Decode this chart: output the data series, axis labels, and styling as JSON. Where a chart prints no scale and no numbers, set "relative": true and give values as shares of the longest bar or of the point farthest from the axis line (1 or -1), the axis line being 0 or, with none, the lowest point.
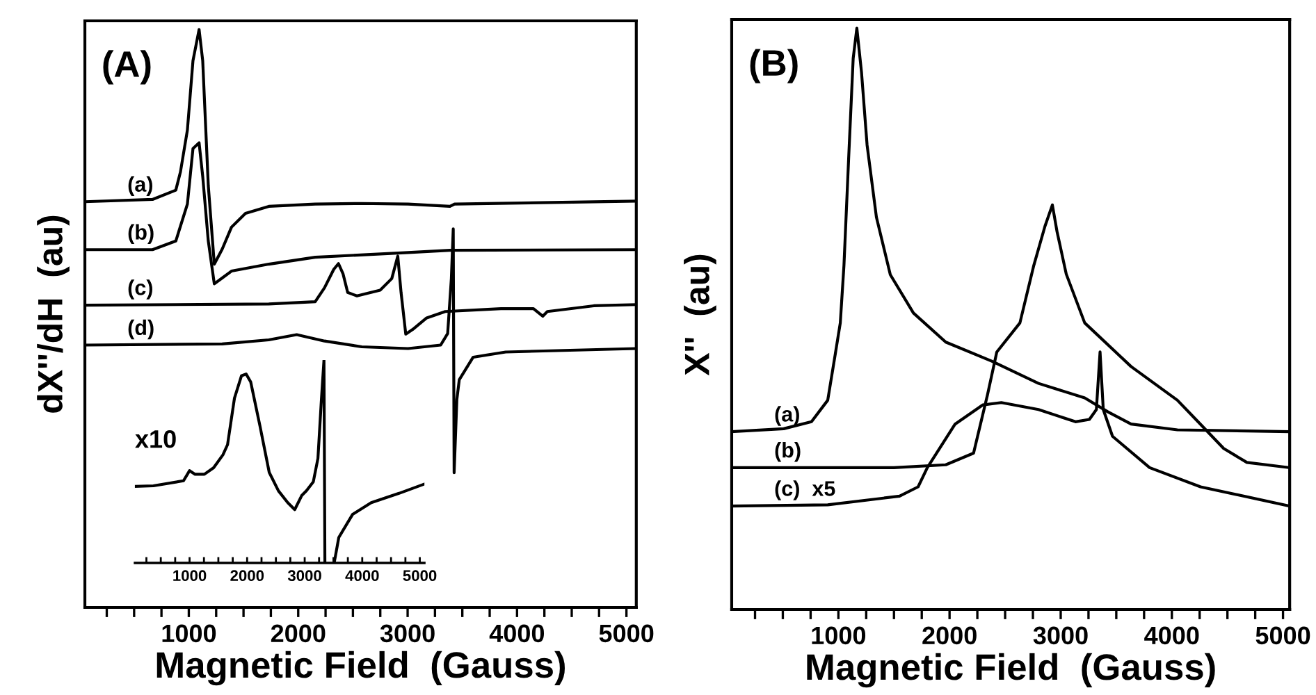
{
  "chart_data": [
    {
      "type": "line",
      "title": "(A)",
      "xlabel": "Magnetic Field  (Gauss)",
      "ylabel": "dX''/dH  (au)",
      "relative": true,
      "legend": false,
      "grid": false,
      "marker": "none",
      "line_style": "solid",
      "xlim": [
        50,
        5090
      ],
      "xticks": [
        {
          "value": 250,
          "label": null
        },
        {
          "value": 500,
          "label": null
        },
        {
          "value": 750,
          "label": null
        },
        1000,
        {
          "value": 1250,
          "label": null
        },
        {
          "value": 1500,
          "label": null
        },
        {
          "value": 1750,
          "label": null
        },
        2000,
        {
          "value": 2250,
          "label": null
        },
        {
          "value": 2500,
          "label": null
        },
        {
          "value": 2750,
          "label": null
        },
        3000,
        {
          "value": 3250,
          "label": null
        },
        {
          "value": 3500,
          "label": null
        },
        {
          "value": 3750,
          "label": null
        },
        4000,
        {
          "value": 4250,
          "label": null
        },
        {
          "value": 4500,
          "label": null
        },
        {
          "value": 4750,
          "label": null
        },
        5000
      ],
      "series": [
        {
          "name": "(a)",
          "color": "#000000",
          "x": [
            50,
            668,
            881,
            924,
            987,
            1038,
            1094,
            1127,
            1178,
            1233,
            1305,
            1390,
            1518,
            1731,
            2155,
            2580,
            3004,
            3387,
            3429,
            5090
          ],
          "values": [
            0.702,
            0.706,
            0.722,
            0.754,
            0.826,
            0.946,
            1.0,
            0.946,
            0.73,
            0.594,
            0.62,
            0.658,
            0.682,
            0.694,
            0.698,
            0.699,
            0.698,
            0.694,
            0.698,
            0.703
          ]
        },
        {
          "name": "(b)",
          "color": "#000000",
          "x": [
            50,
            668,
            881,
            987,
            1038,
            1094,
            1127,
            1178,
            1233,
            1305,
            1390,
            1731,
            2155,
            3004,
            3387,
            5090
          ],
          "values": [
            0.619,
            0.619,
            0.634,
            0.698,
            0.794,
            0.804,
            0.746,
            0.634,
            0.56,
            0.57,
            0.582,
            0.594,
            0.606,
            0.614,
            0.618,
            0.619
          ]
        },
        {
          "name": "(c)",
          "color": "#000000",
          "x": [
            50,
            1731,
            2155,
            2240,
            2325,
            2368,
            2410,
            2452,
            2537,
            2749,
            2855,
            2910,
            2940,
            2983,
            3046,
            3174,
            3344,
            3853,
            4150,
            4235,
            4277,
            4702,
            5090
          ],
          "values": [
            0.523,
            0.525,
            0.529,
            0.553,
            0.585,
            0.595,
            0.577,
            0.545,
            0.539,
            0.549,
            0.569,
            0.608,
            0.545,
            0.473,
            0.481,
            0.501,
            0.512,
            0.517,
            0.517,
            0.504,
            0.512,
            0.522,
            0.524
          ]
        },
        {
          "name": "(d)",
          "color": "#000000",
          "x": [
            50,
            1305,
            1731,
            1986,
            2240,
            2580,
            3004,
            3302,
            3366,
            3400,
            3417,
            3425,
            3450,
            3472,
            3599,
            3896,
            5090
          ],
          "values": [
            0.454,
            0.456,
            0.463,
            0.472,
            0.461,
            0.451,
            0.448,
            0.454,
            0.474,
            0.57,
            0.655,
            0.233,
            0.36,
            0.394,
            0.433,
            0.442,
            0.448
          ]
        }
      ]
    },
    {
      "type": "line",
      "relative": true,
      "annotations": [
        "x10"
      ],
      "legend": false,
      "grid": false,
      "marker": "none",
      "line_style": "solid",
      "xlim": [
        50,
        5080
      ],
      "xticks": [
        {
          "value": 250,
          "label": null
        },
        {
          "value": 500,
          "label": null
        },
        {
          "value": 750,
          "label": null
        },
        1000,
        {
          "value": 1250,
          "label": null
        },
        {
          "value": 1500,
          "label": null
        },
        {
          "value": 1750,
          "label": null
        },
        2000,
        {
          "value": 2250,
          "label": null
        },
        {
          "value": 2500,
          "label": null
        },
        {
          "value": 2750,
          "label": null
        },
        3000,
        {
          "value": 3250,
          "label": null
        },
        {
          "value": 3500,
          "label": null
        },
        {
          "value": 3750,
          "label": null
        },
        4000,
        {
          "value": 4250,
          "label": null
        },
        {
          "value": 4500,
          "label": null
        },
        {
          "value": 4750,
          "label": null
        },
        5000
      ],
      "series": [
        {
          "color": "#000000",
          "x": [
            50,
            372,
            895,
            1000,
            1096,
            1257,
            1418,
            1580,
            1660,
            1780,
            1901,
            1982,
            2062,
            2223,
            2384,
            2545,
            2706,
            2827,
            2948,
            3029,
            3150,
            3230,
            3287,
            3335,
            3351,
            3430,
            3512,
            3593,
            3834,
            4156,
            4639,
            5080
          ],
          "values": [
            0.377,
            0.38,
            0.405,
            0.455,
            0.437,
            0.437,
            0.469,
            0.533,
            0.583,
            0.812,
            0.922,
            0.931,
            0.892,
            0.675,
            0.446,
            0.355,
            0.297,
            0.263,
            0.332,
            0.355,
            0.4,
            0.515,
            0.789,
            1.0,
            0,
            null,
            0,
            0.126,
            0.24,
            0.297,
            0.343,
            0.389
          ]
        }
      ]
    },
    {
      "type": "line",
      "title": "(B)",
      "xlabel": "Magnetic Field  (Gauss)",
      "ylabel": "X''  (au)",
      "relative": true,
      "legend": false,
      "grid": false,
      "marker": "none",
      "line_style": "solid",
      "xlim": [
        40,
        5060
      ],
      "xticks": [
        {
          "value": 250,
          "label": null
        },
        {
          "value": 500,
          "label": null
        },
        {
          "value": 750,
          "label": null
        },
        1000,
        {
          "value": 1250,
          "label": null
        },
        {
          "value": 1500,
          "label": null
        },
        {
          "value": 1750,
          "label": null
        },
        2000,
        {
          "value": 2250,
          "label": null
        },
        {
          "value": 2500,
          "label": null
        },
        {
          "value": 2750,
          "label": null
        },
        3000,
        {
          "value": 3250,
          "label": null
        },
        {
          "value": 3500,
          "label": null
        },
        {
          "value": 3750,
          "label": null
        },
        4000,
        {
          "value": 4250,
          "label": null
        },
        {
          "value": 4500,
          "label": null
        },
        {
          "value": 4750,
          "label": null
        },
        5000
      ],
      "series": [
        {
          "name": "(a)",
          "color": "#000000",
          "x": [
            40,
            508,
            758,
            904,
            975,
            1017,
            1050,
            1092,
            1133,
            1166,
            1208,
            1258,
            1342,
            1467,
            1675,
            1966,
            2383,
            2800,
            3216,
            3425,
            3633,
            4050,
            5060
          ],
          "values": [
            0.306,
            0.311,
            0.323,
            0.36,
            0.443,
            0.493,
            0.592,
            0.775,
            0.948,
            1.0,
            0.924,
            0.799,
            0.675,
            0.576,
            0.51,
            0.46,
            0.427,
            0.389,
            0.364,
            0.34,
            0.319,
            0.309,
            0.306
          ]
        },
        {
          "name": "(b)",
          "color": "#000000",
          "x": [
            40,
            1500,
            1966,
            2216,
            2341,
            2425,
            2633,
            2758,
            2858,
            2925,
            2966,
            3050,
            3216,
            3633,
            4050,
            4216,
            4466,
            4675,
            5060
          ],
          "values": [
            0.244,
            0.244,
            0.249,
            0.269,
            0.369,
            0.443,
            0.493,
            0.592,
            0.659,
            0.696,
            0.651,
            0.577,
            0.493,
            0.418,
            0.36,
            0.327,
            0.277,
            0.253,
            0.244
          ]
        },
        {
          "name": "(c)  x5",
          "color": "#000000",
          "x": [
            40,
            904,
            1550,
            1717,
            1800,
            2050,
            2300,
            2466,
            2800,
            3133,
            3258,
            3321,
            3354,
            3383,
            3466,
            3800,
            4258,
            5060
          ],
          "values": [
            0.178,
            0.18,
            0.195,
            0.211,
            0.244,
            0.319,
            0.352,
            0.356,
            0.344,
            0.323,
            0.327,
            0.344,
            0.443,
            0.344,
            0.298,
            0.244,
            0.211,
            0.178
          ]
        }
      ]
    }
  ]
}
